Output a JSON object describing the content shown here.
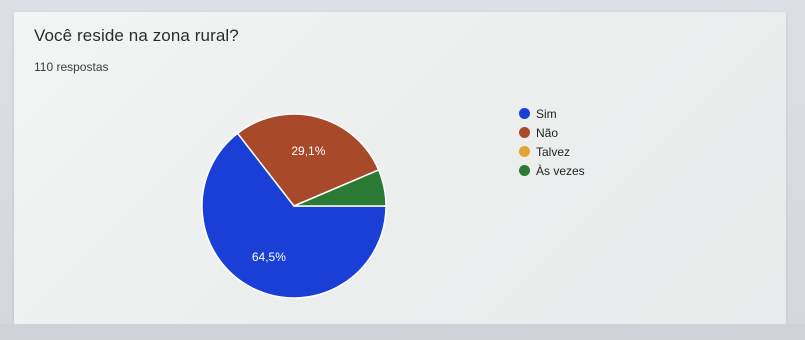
{
  "card": {
    "title": "Você reside na zona rural?",
    "subtitle": "110 respostas"
  },
  "chart_data": {
    "type": "pie",
    "title": "Você reside na zona rural?",
    "slices": [
      {
        "label": "Sim",
        "value": 64.5,
        "color": "#3366cc",
        "display": "64,5%"
      },
      {
        "label": "Não",
        "value": 29.1,
        "color": "#b5603a",
        "display": "29,1%"
      },
      {
        "label": "Talvez",
        "value": 0.0,
        "color": "#e0a03a",
        "display": ""
      },
      {
        "label": "Às vezes",
        "value": 6.4,
        "color": "#2f7a3a",
        "display": ""
      }
    ],
    "legend_position": "right"
  },
  "legend": {
    "items": [
      "Sim",
      "Não",
      "Talvez",
      "Às vezes"
    ]
  }
}
